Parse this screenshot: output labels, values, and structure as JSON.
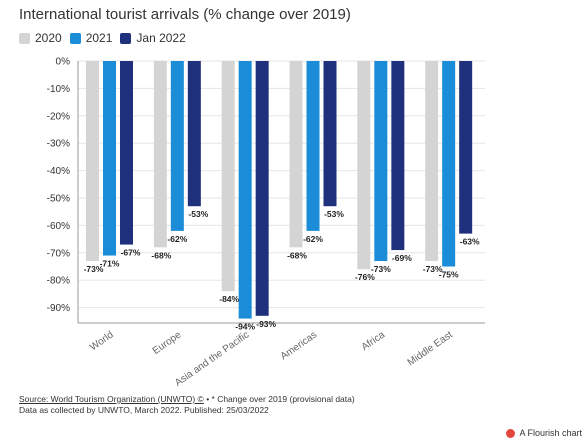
{
  "chart_data": {
    "type": "bar",
    "title": "International tourist arrivals (% change over 2019)",
    "categories": [
      "World",
      "Europe",
      "Asia and the Pacific",
      "Americas",
      "Africa",
      "Middle East"
    ],
    "series": [
      {
        "name": "2020",
        "color": "#d4d4d4",
        "values": [
          -73,
          -68,
          -84,
          -68,
          -76,
          -73
        ]
      },
      {
        "name": "2021",
        "color": "#1a8cd8",
        "values": [
          -71,
          -62,
          -94,
          -62,
          -73,
          -75
        ]
      },
      {
        "name": "Jan 2022",
        "color": "#1f317d",
        "values": [
          -67,
          -53,
          -93,
          -53,
          -69,
          -63
        ]
      }
    ],
    "data_labels": [
      [
        "-73%",
        "-71%",
        "-67%"
      ],
      [
        "-68%",
        "-62%",
        "-53%"
      ],
      [
        "-84%",
        "-94%",
        "-93%"
      ],
      [
        "-68%",
        "-62%",
        "-53%"
      ],
      [
        "-76%",
        "-73%",
        "-69%"
      ],
      [
        "-73%",
        "-75%",
        "-63%"
      ]
    ],
    "ylim": [
      -100,
      0
    ],
    "yticks": [
      0,
      -10,
      -20,
      -30,
      -40,
      -50,
      -60,
      -70,
      -80,
      -90
    ],
    "ytick_labels": [
      "0%",
      "-10%",
      "-20%",
      "-30%",
      "-40%",
      "-50%",
      "-60%",
      "-70%",
      "-80%",
      "-90%"
    ],
    "xlabel": "",
    "ylabel": "",
    "grid": true,
    "legend_position": "top-left"
  },
  "footer": {
    "source_link": "Source: World Tourism Organization (UNWTO) ©",
    "source_note": " • * Change over 2019 (provisional data)",
    "line2": "Data as collected by UNWTO, March 2022. Published: 25/03/2022"
  },
  "brand": {
    "label": "A Flourish chart"
  }
}
